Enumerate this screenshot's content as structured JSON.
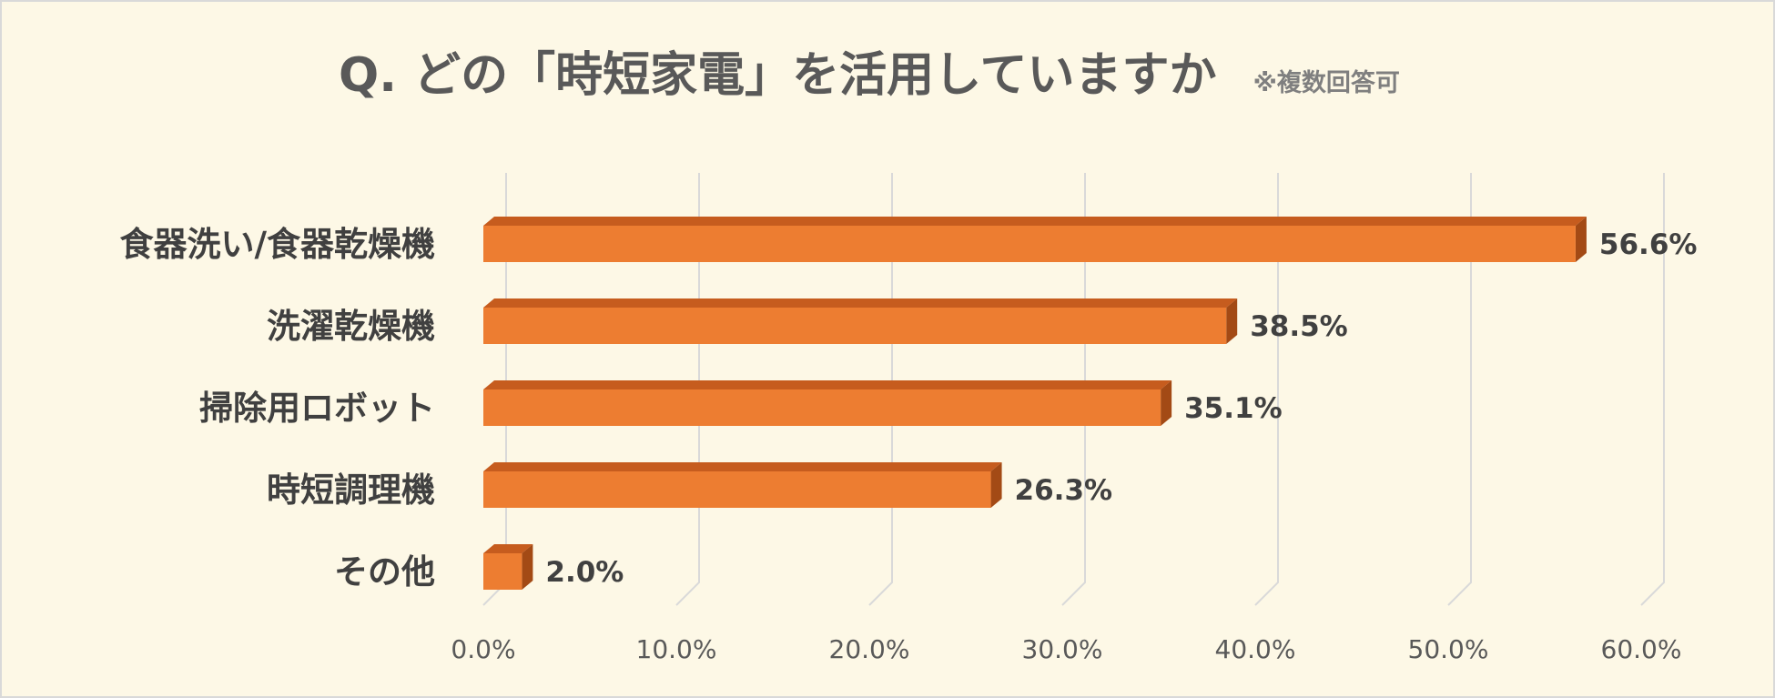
{
  "chart_data": {
    "type": "bar",
    "orientation": "horizontal",
    "title": "Q. どの「時短家電」を活用していますか",
    "subtitle": "※複数回答可",
    "categories": [
      "食器洗い/食器乾燥機",
      "洗濯乾燥機",
      "掃除用ロボット",
      "時短調理機",
      "その他"
    ],
    "values": [
      56.6,
      38.5,
      35.1,
      26.3,
      2.0
    ],
    "value_labels": [
      "56.6%",
      "38.5%",
      "35.1%",
      "26.3%",
      "2.0%"
    ],
    "x_ticks": [
      "0.0%",
      "10.0%",
      "20.0%",
      "30.0%",
      "40.0%",
      "50.0%",
      "60.0%"
    ],
    "xlim": [
      0,
      60
    ],
    "grid": true,
    "style": "3d",
    "legend": "none"
  },
  "colors": {
    "background": "#fdf8e6",
    "border": "#d9d9d9",
    "bar_front": "#ed7d31",
    "bar_top": "#c65c1e",
    "bar_side": "#a34a15",
    "grid": "#d9d9d9",
    "title": "#595959"
  }
}
